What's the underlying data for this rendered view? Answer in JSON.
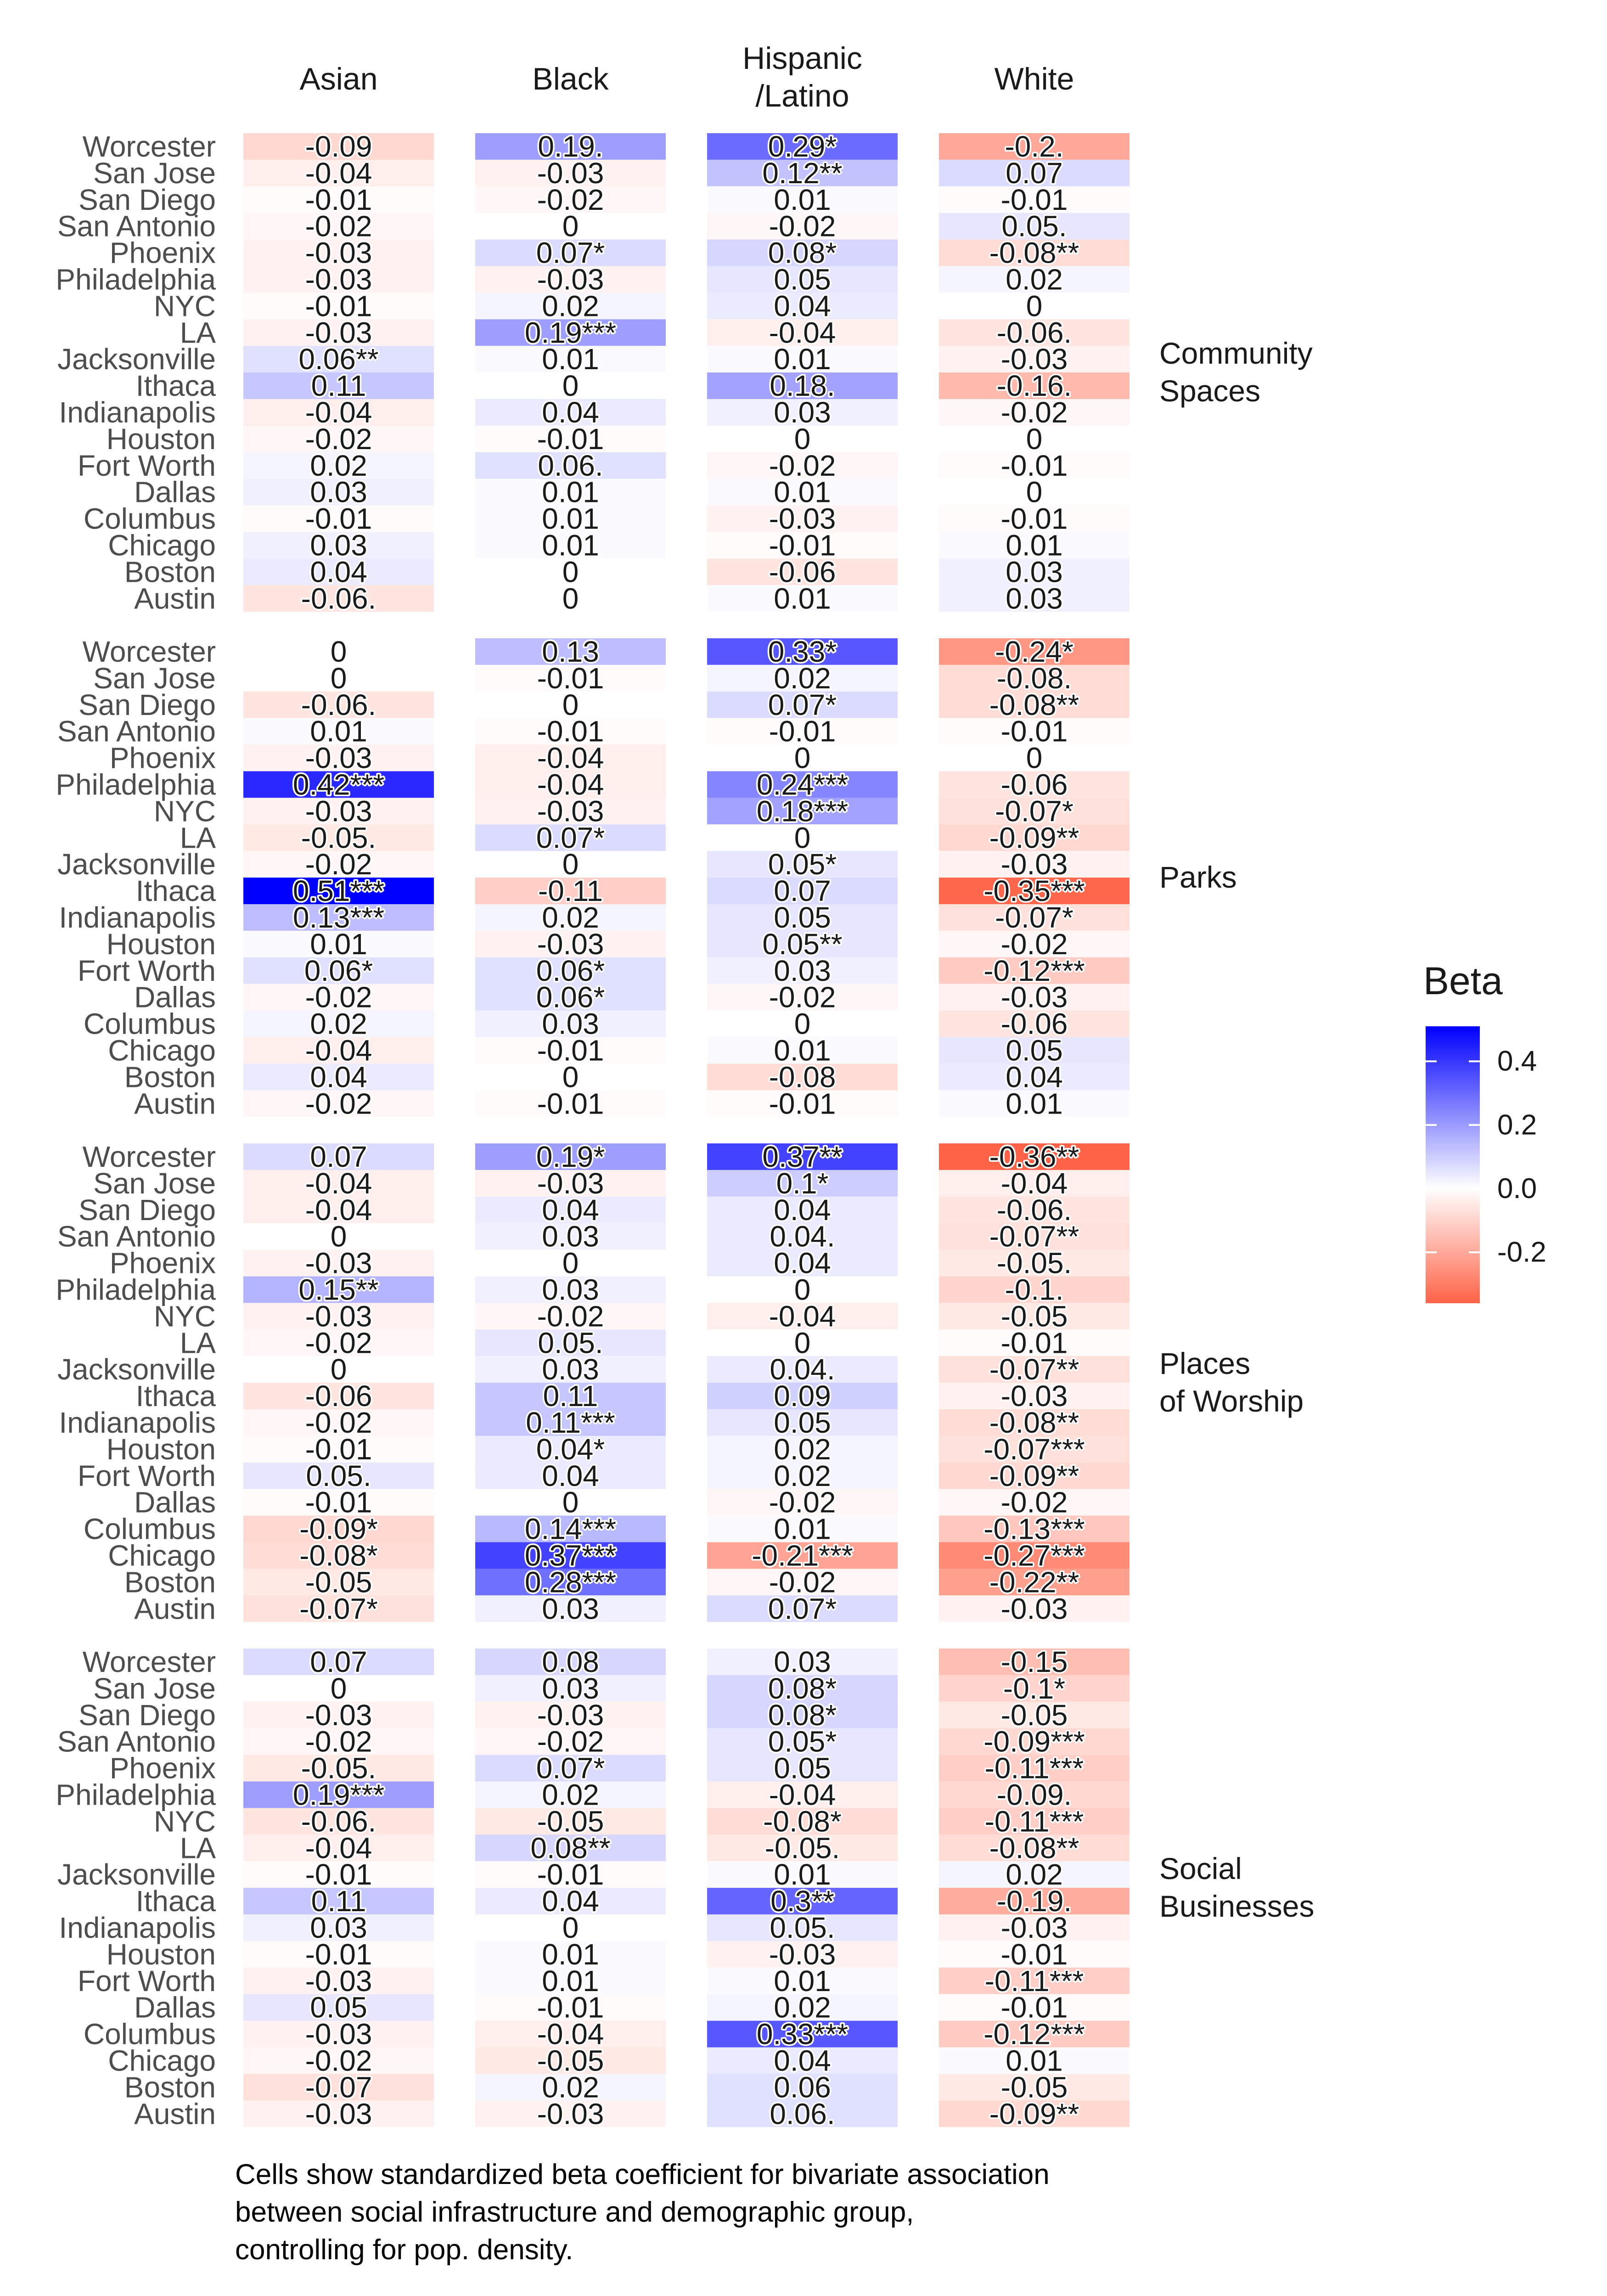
{
  "chart_data": {
    "type": "heatmap",
    "columns": [
      "Asian",
      "Black",
      "Hispanic /Latino",
      "White"
    ],
    "column_header_lines": [
      [
        "Asian"
      ],
      [
        "Black"
      ],
      [
        "Hispanic",
        "/Latino"
      ],
      [
        "White"
      ]
    ],
    "rows": [
      "Worcester",
      "San Jose",
      "San Diego",
      "San Antonio",
      "Phoenix",
      "Philadelphia",
      "NYC",
      "LA",
      "Jacksonville",
      "Ithaca",
      "Indianapolis",
      "Houston",
      "Fort Worth",
      "Dallas",
      "Columbus",
      "Chicago",
      "Boston",
      "Austin"
    ],
    "panels": [
      {
        "name": "Community Spaces",
        "label_lines": [
          "Community",
          "Spaces"
        ],
        "cells": [
          [
            "-0.09",
            "0.19.",
            "0.29*",
            "-0.2."
          ],
          [
            "-0.04",
            "-0.03",
            "0.12**",
            "0.07"
          ],
          [
            "-0.01",
            "-0.02",
            "0.01",
            "-0.01"
          ],
          [
            "-0.02",
            "0",
            "-0.02",
            "0.05."
          ],
          [
            "-0.03",
            "0.07*",
            "0.08*",
            "-0.08**"
          ],
          [
            "-0.03",
            "-0.03",
            "0.05",
            "0.02"
          ],
          [
            "-0.01",
            "0.02",
            "0.04",
            "0"
          ],
          [
            "-0.03",
            "0.19***",
            "-0.04",
            "-0.06."
          ],
          [
            "0.06**",
            "0.01",
            "0.01",
            "-0.03"
          ],
          [
            "0.11",
            "0",
            "0.18.",
            "-0.16."
          ],
          [
            "-0.04",
            "0.04",
            "0.03",
            "-0.02"
          ],
          [
            "-0.02",
            "-0.01",
            "0",
            "0"
          ],
          [
            "0.02",
            "0.06.",
            "-0.02",
            "-0.01"
          ],
          [
            "0.03",
            "0.01",
            "0.01",
            "0"
          ],
          [
            "-0.01",
            "0.01",
            "-0.03",
            "-0.01"
          ],
          [
            "0.03",
            "0.01",
            "-0.01",
            "0.01"
          ],
          [
            "0.04",
            "0",
            "-0.06",
            "0.03"
          ],
          [
            "-0.06.",
            "0",
            "0.01",
            "0.03"
          ]
        ]
      },
      {
        "name": "Parks",
        "label_lines": [
          "Parks"
        ],
        "cells": [
          [
            "0",
            "0.13",
            "0.33*",
            "-0.24*"
          ],
          [
            "0",
            "-0.01",
            "0.02",
            "-0.08."
          ],
          [
            "-0.06.",
            "0",
            "0.07*",
            "-0.08**"
          ],
          [
            "0.01",
            "-0.01",
            "-0.01",
            "-0.01"
          ],
          [
            "-0.03",
            "-0.04",
            "0",
            "0"
          ],
          [
            "0.42***",
            "-0.04",
            "0.24***",
            "-0.06"
          ],
          [
            "-0.03",
            "-0.03",
            "0.18***",
            "-0.07*"
          ],
          [
            "-0.05.",
            "0.07*",
            "0",
            "-0.09**"
          ],
          [
            "-0.02",
            "0",
            "0.05*",
            "-0.03"
          ],
          [
            "0.51***",
            "-0.11",
            "0.07",
            "-0.35***"
          ],
          [
            "0.13***",
            "0.02",
            "0.05",
            "-0.07*"
          ],
          [
            "0.01",
            "-0.03",
            "0.05**",
            "-0.02"
          ],
          [
            "0.06*",
            "0.06*",
            "0.03",
            "-0.12***"
          ],
          [
            "-0.02",
            "0.06*",
            "-0.02",
            "-0.03"
          ],
          [
            "0.02",
            "0.03",
            "0",
            "-0.06"
          ],
          [
            "-0.04",
            "-0.01",
            "0.01",
            "0.05"
          ],
          [
            "0.04",
            "0",
            "-0.08",
            "0.04"
          ],
          [
            "-0.02",
            "-0.01",
            "-0.01",
            "0.01"
          ]
        ]
      },
      {
        "name": "Places of Worship",
        "label_lines": [
          "Places",
          "of Worship"
        ],
        "cells": [
          [
            "0.07",
            "0.19*",
            "0.37**",
            "-0.36**"
          ],
          [
            "-0.04",
            "-0.03",
            "0.1*",
            "-0.04"
          ],
          [
            "-0.04",
            "0.04",
            "0.04",
            "-0.06."
          ],
          [
            "0",
            "0.03",
            "0.04.",
            "-0.07**"
          ],
          [
            "-0.03",
            "0",
            "0.04",
            "-0.05."
          ],
          [
            "0.15**",
            "0.03",
            "0",
            "-0.1."
          ],
          [
            "-0.03",
            "-0.02",
            "-0.04",
            "-0.05"
          ],
          [
            "-0.02",
            "0.05.",
            "0",
            "-0.01"
          ],
          [
            "0",
            "0.03",
            "0.04.",
            "-0.07**"
          ],
          [
            "-0.06",
            "0.11",
            "0.09",
            "-0.03"
          ],
          [
            "-0.02",
            "0.11***",
            "0.05",
            "-0.08**"
          ],
          [
            "-0.01",
            "0.04*",
            "0.02",
            "-0.07***"
          ],
          [
            "0.05.",
            "0.04",
            "0.02",
            "-0.09**"
          ],
          [
            "-0.01",
            "0",
            "-0.02",
            "-0.02"
          ],
          [
            "-0.09*",
            "0.14***",
            "0.01",
            "-0.13***"
          ],
          [
            "-0.08*",
            "0.37***",
            "-0.21***",
            "-0.27***"
          ],
          [
            "-0.05",
            "0.28***",
            "-0.02",
            "-0.22**"
          ],
          [
            "-0.07*",
            "0.03",
            "0.07*",
            "-0.03"
          ]
        ]
      },
      {
        "name": "Social Businesses",
        "label_lines": [
          "Social",
          "Businesses"
        ],
        "cells": [
          [
            "0.07",
            "0.08",
            "0.03",
            "-0.15"
          ],
          [
            "0",
            "0.03",
            "0.08*",
            "-0.1*"
          ],
          [
            "-0.03",
            "-0.03",
            "0.08*",
            "-0.05"
          ],
          [
            "-0.02",
            "-0.02",
            "0.05*",
            "-0.09***"
          ],
          [
            "-0.05.",
            "0.07*",
            "0.05",
            "-0.11***"
          ],
          [
            "0.19***",
            "0.02",
            "-0.04",
            "-0.09."
          ],
          [
            "-0.06.",
            "-0.05",
            "-0.08*",
            "-0.11***"
          ],
          [
            "-0.04",
            "0.08**",
            "-0.05.",
            "-0.08**"
          ],
          [
            "-0.01",
            "-0.01",
            "0.01",
            "0.02"
          ],
          [
            "0.11",
            "0.04",
            "0.3**",
            "-0.19."
          ],
          [
            "0.03",
            "0",
            "0.05.",
            "-0.03"
          ],
          [
            "-0.01",
            "0.01",
            "-0.03",
            "-0.01"
          ],
          [
            "-0.03",
            "0.01",
            "0.01",
            "-0.11***"
          ],
          [
            "0.05",
            "-0.01",
            "0.02",
            "-0.01"
          ],
          [
            "-0.03",
            "-0.04",
            "0.33***",
            "-0.12***"
          ],
          [
            "-0.02",
            "-0.05",
            "0.04",
            "0.01"
          ],
          [
            "-0.07",
            "0.02",
            "0.06",
            "-0.05"
          ],
          [
            "-0.03",
            "-0.03",
            "0.06.",
            "-0.09**"
          ]
        ]
      }
    ],
    "legend": {
      "title": "Beta",
      "ticks": [
        "0.4",
        "0.2",
        "0.0",
        "-0.2"
      ],
      "range": [
        -0.36,
        0.51
      ],
      "colors": {
        "low": "#FF6347",
        "mid": "#FFFFFF",
        "high": "#0000FF"
      }
    },
    "caption_lines": [
      "Cells show standardized beta coefficient for bivariate association",
      "between social infrastructure and demographic group,",
      "controlling for pop. density."
    ]
  }
}
